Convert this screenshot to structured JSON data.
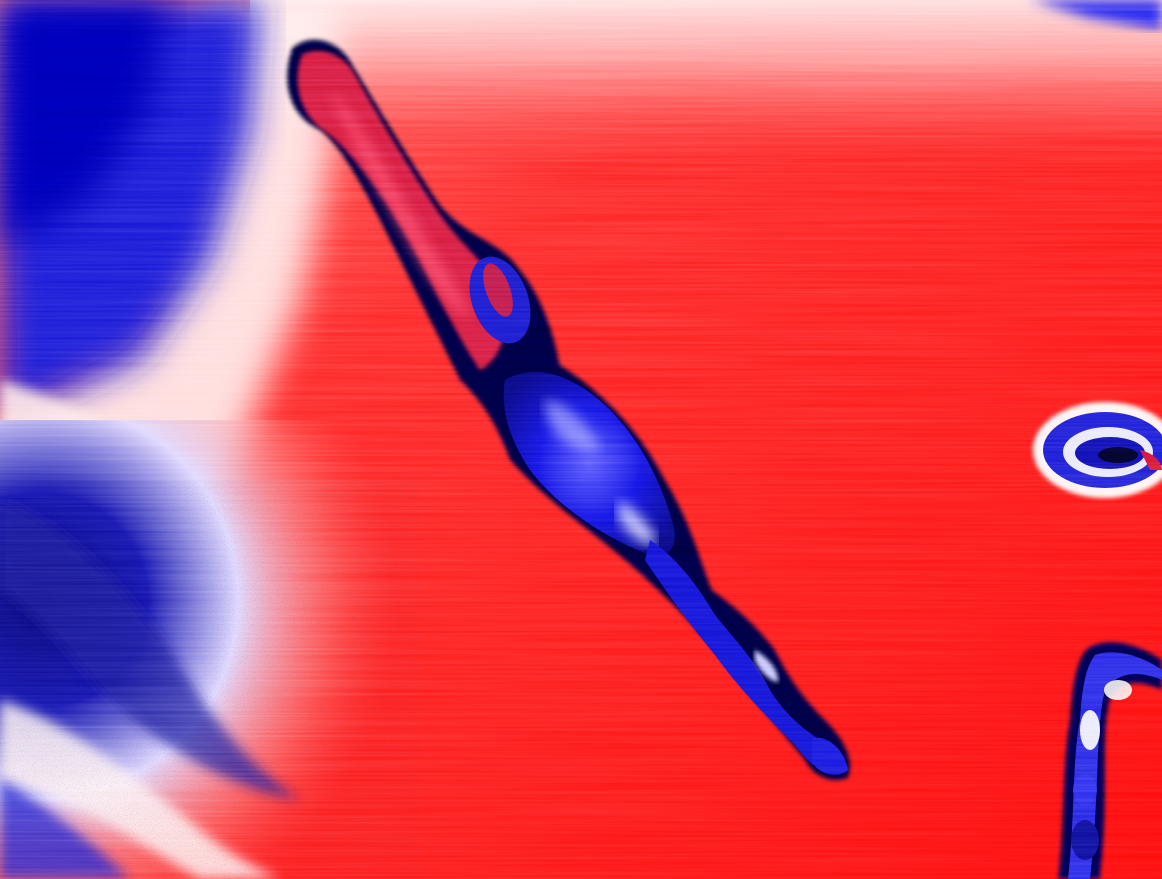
{
  "image": {
    "description_colors": {
      "field_red": "#ff1a1a",
      "field_red_light": "#ff6b6b",
      "field_white": "#fff4f4",
      "cold_blue": "#1010e0",
      "deep_blue": "#0a0a9a",
      "dark_navy": "#050533"
    }
  }
}
